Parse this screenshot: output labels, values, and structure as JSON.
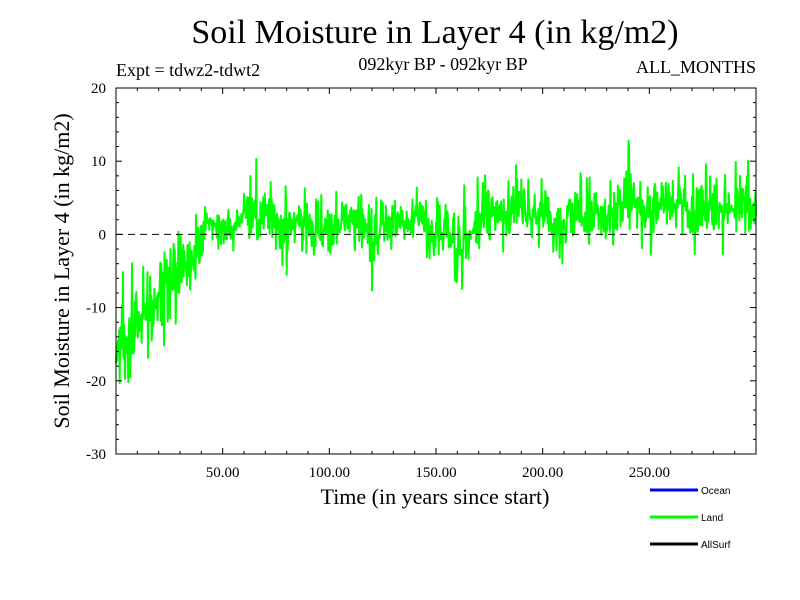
{
  "chart_data": {
    "type": "line",
    "title": "Soil Moisture in Layer 4 (in kg/m2)",
    "subtitle": "092kyr BP - 092kyr BP",
    "experiment": "Expt = tdwz2-tdwt2",
    "period": "ALL_MONTHS",
    "xlabel": "Time (in years since start)",
    "ylabel": "Soil Moisture in Layer 4 (in kg/m2)",
    "xlim": [
      0,
      300
    ],
    "ylim": [
      -30,
      20
    ],
    "xticks": [
      50,
      100,
      150,
      200,
      250
    ],
    "xtick_labels": [
      "50.00",
      "100.00",
      "150.00",
      "200.00",
      "250.00"
    ],
    "yticks": [
      -30,
      -20,
      -10,
      0,
      10,
      20
    ],
    "ytick_labels": [
      "-30",
      "-20",
      "-10",
      "0",
      "10",
      "20"
    ],
    "zero_line": true,
    "grid": false,
    "legend": {
      "placement": "bottom-right",
      "entries": [
        {
          "name": "Ocean",
          "color": "#0000ff"
        },
        {
          "name": "Land",
          "color": "#00ff00"
        },
        {
          "name": "AllSurf",
          "color": "#000000"
        }
      ]
    },
    "series": [
      {
        "name": "Land",
        "color": "#00ff00",
        "x": [
          0,
          5,
          10,
          15,
          20,
          25,
          30,
          35,
          40,
          45,
          50,
          55,
          60,
          65,
          70,
          75,
          80,
          85,
          90,
          95,
          100,
          105,
          110,
          115,
          120,
          125,
          130,
          135,
          140,
          145,
          150,
          155,
          160,
          165,
          170,
          175,
          180,
          185,
          190,
          195,
          200,
          205,
          210,
          215,
          220,
          225,
          230,
          235,
          240,
          245,
          250,
          255,
          260,
          265,
          270,
          275,
          280,
          285,
          290,
          295,
          300
        ],
        "y": [
          -15,
          -14,
          -12,
          -10,
          -8,
          -6,
          -3,
          -5,
          1,
          2,
          1,
          1,
          3,
          2,
          4,
          1,
          2,
          1,
          2,
          0,
          1,
          1,
          2,
          1,
          -2,
          1,
          2,
          1,
          3,
          1,
          0,
          2,
          -3,
          -1,
          2,
          3,
          2,
          3,
          4,
          2,
          3,
          1,
          2,
          3,
          2,
          3,
          1,
          4,
          5,
          4,
          3,
          4,
          5,
          4,
          3,
          4,
          4,
          3,
          4,
          5,
          3
        ],
        "envelope_high": [
          -5,
          -3,
          -2,
          -1,
          2,
          2,
          2,
          3,
          7,
          5,
          4,
          4,
          6,
          11,
          8,
          7,
          7,
          6,
          7,
          6,
          6,
          6,
          6,
          6,
          6,
          5,
          6,
          6,
          7,
          6,
          5,
          7,
          7,
          7,
          8,
          9,
          8,
          9,
          10,
          8,
          9,
          7,
          8,
          9,
          8,
          8,
          8,
          9,
          14,
          10,
          10,
          10,
          12,
          9,
          9,
          10,
          10,
          10,
          11,
          11,
          10
        ],
        "envelope_low": [
          -20,
          -21,
          -20,
          -17,
          -16,
          -18,
          -9,
          -10,
          -3,
          -3,
          -2,
          -4,
          -2,
          -2,
          -4,
          -5,
          -8,
          -3,
          -3,
          -4,
          -3,
          -4,
          -3,
          -4,
          -8,
          -3,
          -2,
          -4,
          -2,
          -3,
          -4,
          -3,
          -9,
          -6,
          -2,
          -2,
          -3,
          -2,
          -1,
          -3,
          -2,
          -4,
          -4,
          -3,
          -3,
          -2,
          -4,
          -2,
          -1,
          -2,
          -3,
          -2,
          -1,
          -3,
          -4,
          -2,
          -2,
          -3,
          -1,
          0,
          -1
        ]
      }
    ]
  }
}
